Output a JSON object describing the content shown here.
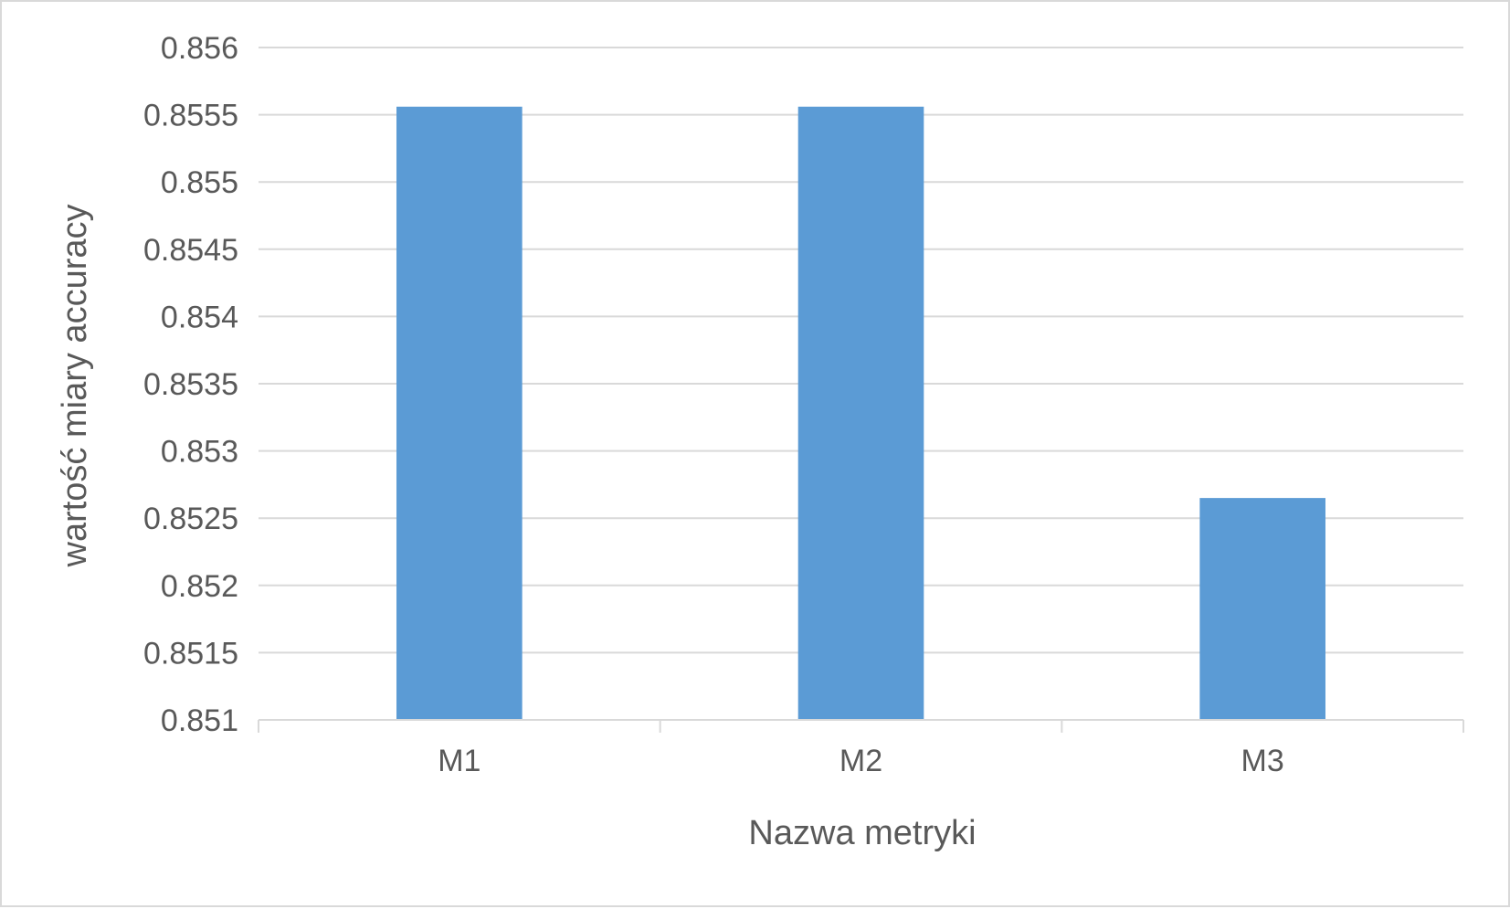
{
  "chart_data": {
    "type": "bar",
    "categories": [
      "M1",
      "M2",
      "M3"
    ],
    "values": [
      0.85556,
      0.85556,
      0.85265
    ],
    "yticks": [
      "0.851",
      "0.8515",
      "0.852",
      "0.8525",
      "0.853",
      "0.8535",
      "0.854",
      "0.8545",
      "0.855",
      "0.8555",
      "0.856"
    ],
    "ylim": [
      0.851,
      0.856
    ],
    "xlabel": "Nazwa metryki",
    "ylabel": "wartość miary accuracy",
    "grid": true,
    "colors": {
      "bar": "#5b9bd5",
      "grid": "#d9d9d9",
      "axis": "#d9d9d9",
      "text": "#595959"
    }
  }
}
